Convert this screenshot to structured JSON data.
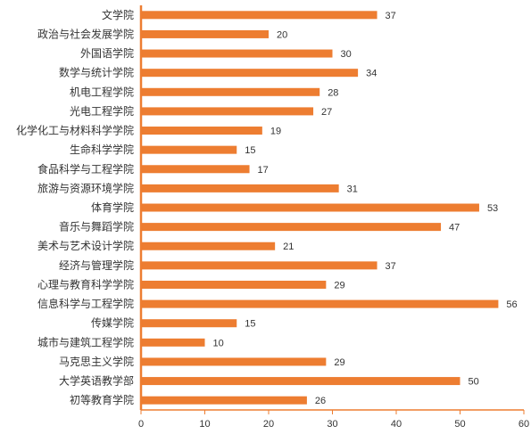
{
  "colors": {
    "bar": "#ED7D31",
    "axis": "#ED7D31",
    "text": "#333333"
  },
  "chart_data": {
    "type": "bar",
    "orientation": "horizontal",
    "categories": [
      "文学院",
      "政治与社会发展学院",
      "外国语学院",
      "数学与统计学院",
      "机电工程学院",
      "光电工程学院",
      "化学化工与材料科学学院",
      "生命科学学院",
      "食品科学与工程学院",
      "旅游与资源环境学院",
      "体育学院",
      "音乐与舞蹈学院",
      "美术与艺术设计学院",
      "经济与管理学院",
      "心理与教育科学学院",
      "信息科学与工程学院",
      "传媒学院",
      "城市与建筑工程学院",
      "马克思主义学院",
      "大学英语教学部",
      "初等教育学院"
    ],
    "values": [
      37,
      20,
      30,
      34,
      28,
      27,
      19,
      15,
      17,
      31,
      53,
      47,
      21,
      37,
      29,
      56,
      15,
      10,
      29,
      50,
      26
    ],
    "x_ticks": [
      "0",
      "10",
      "20",
      "30",
      "40",
      "50",
      "60"
    ],
    "xlim": [
      0,
      60
    ],
    "title": "",
    "xlabel": "",
    "ylabel": "",
    "grid": false,
    "legend": "none",
    "data_labels": true
  }
}
